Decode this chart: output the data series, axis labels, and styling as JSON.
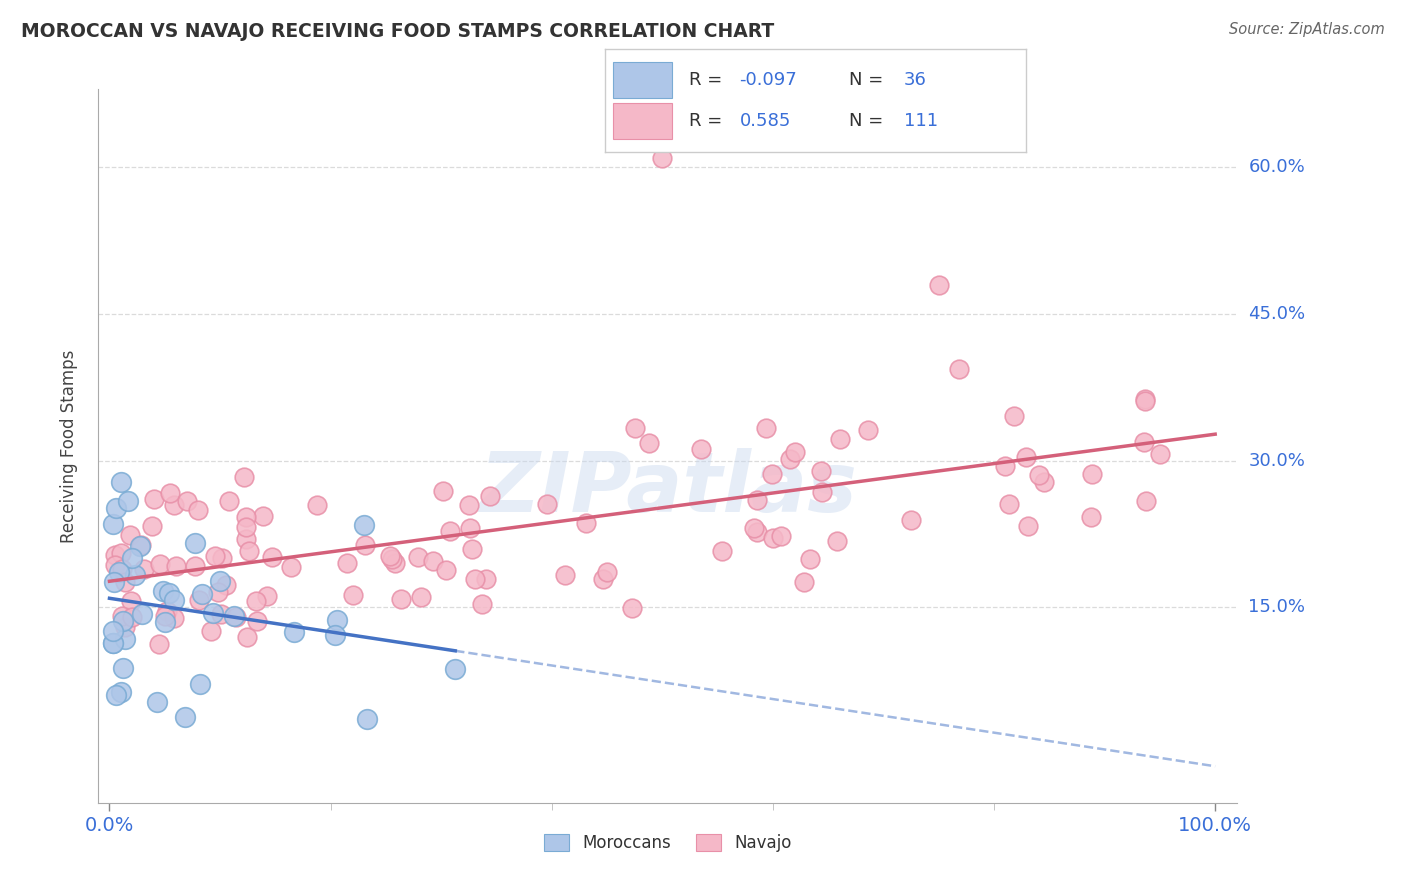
{
  "title": "MOROCCAN VS NAVAJO RECEIVING FOOD STAMPS CORRELATION CHART",
  "source": "Source: ZipAtlas.com",
  "ylabel": "Receiving Food Stamps",
  "moroccan_fill": "#aec6e8",
  "moroccan_edge": "#7aabd4",
  "navajo_fill": "#f5b8c8",
  "navajo_edge": "#e890a8",
  "moroccan_line_color": "#4472c4",
  "navajo_line_color": "#d4607a",
  "legend_border": "#cccccc",
  "grid_color": "#cccccc",
  "ytick_values": [
    15,
    30,
    45,
    60
  ],
  "ytick_labels": [
    "15.0%",
    "30.0%",
    "45.0%",
    "60.0%"
  ],
  "xtick_labels": [
    "0.0%",
    "100.0%"
  ],
  "xlim_data": [
    0,
    100
  ],
  "ylim_data": [
    -5,
    68
  ],
  "watermark_color": "#c8d8ee",
  "title_color": "#333333",
  "axis_label_color": "#3a6fd8",
  "source_color": "#666666",
  "legend_text_color": "#333333",
  "legend_value_color": "#3a6fd8",
  "moroccan_R": "-0.097",
  "moroccan_N": "36",
  "navajo_R": "0.585",
  "navajo_N": "111"
}
